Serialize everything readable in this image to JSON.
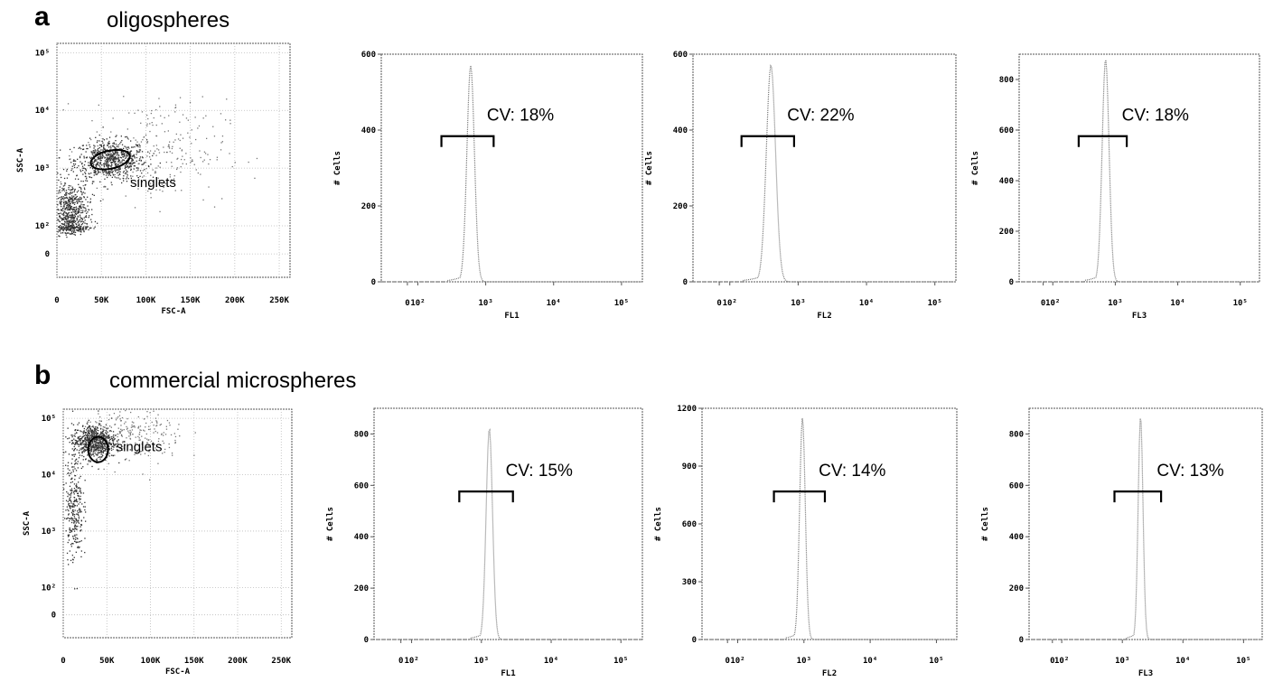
{
  "rows": [
    {
      "letter": "a",
      "title": "oligospheres",
      "scatter": {
        "xlabel": "FSC-A",
        "ylabel": "SSC-A",
        "xticks": [
          "0",
          "50K",
          "100K",
          "150K",
          "200K",
          "250K"
        ],
        "yticks": [
          "0",
          "10²",
          "10³",
          "10⁴",
          "10⁵"
        ],
        "gate_label": "singlets"
      },
      "histograms": [
        {
          "xlabel": "FL1",
          "ylabel": "# Cells",
          "yticks": [
            "0",
            "200",
            "400",
            "600"
          ],
          "xticks": [
            "0",
            "10²",
            "10³",
            "10⁴",
            "10⁵"
          ],
          "cv": "CV: 18%"
        },
        {
          "xlabel": "FL2",
          "ylabel": "# Cells",
          "yticks": [
            "0",
            "200",
            "400",
            "600"
          ],
          "xticks": [
            "0",
            "10²",
            "10³",
            "10⁴",
            "10⁵"
          ],
          "cv": "CV: 22%"
        },
        {
          "xlabel": "FL3",
          "ylabel": "# Cells",
          "yticks": [
            "0",
            "200",
            "400",
            "600",
            "800"
          ],
          "xticks": [
            "0",
            "10²",
            "10³",
            "10⁴",
            "10⁵"
          ],
          "cv": "CV: 18%"
        }
      ]
    },
    {
      "letter": "b",
      "title": "commercial microspheres",
      "scatter": {
        "xlabel": "FSC-A",
        "ylabel": "SSC-A",
        "xticks": [
          "0",
          "50K",
          "100K",
          "150K",
          "200K",
          "250K"
        ],
        "yticks": [
          "0",
          "10²",
          "10³",
          "10⁴",
          "10⁵"
        ],
        "gate_label": "singlets"
      },
      "histograms": [
        {
          "xlabel": "FL1",
          "ylabel": "# Cells",
          "yticks": [
            "0",
            "200",
            "400",
            "600",
            "800"
          ],
          "xticks": [
            "0",
            "10²",
            "10³",
            "10⁴",
            "10⁵"
          ],
          "cv": "CV: 15%"
        },
        {
          "xlabel": "FL2",
          "ylabel": "# Cells",
          "yticks": [
            "0",
            "300",
            "600",
            "900",
            "1200"
          ],
          "xticks": [
            "0",
            "10²",
            "10³",
            "10⁴",
            "10⁵"
          ],
          "cv": "CV: 14%"
        },
        {
          "xlabel": "FL3",
          "ylabel": "# Cells",
          "yticks": [
            "0",
            "200",
            "400",
            "600",
            "800"
          ],
          "xticks": [
            "0",
            "10²",
            "10³",
            "10⁴",
            "10⁵"
          ],
          "cv": "CV: 13%"
        }
      ]
    }
  ],
  "chart_data": [
    {
      "type": "scatter",
      "panel": "a",
      "title": "oligospheres",
      "xlabel": "FSC-A",
      "ylabel": "SSC-A",
      "xlim": [
        0,
        262144
      ],
      "yscale": "biexponential",
      "x_tick_values": [
        0,
        50000,
        100000,
        150000,
        200000,
        250000
      ],
      "y_tick_values": [
        0,
        100,
        1000,
        10000,
        100000
      ],
      "gate": {
        "name": "singlets",
        "center": [
          60000,
          1400
        ]
      },
      "populations": [
        {
          "center": [
            60000,
            1400
          ],
          "x_spread": 40000,
          "y_log_spread": 0.35,
          "density": "high"
        },
        {
          "center": [
            15000,
            150
          ],
          "x_spread": 20000,
          "y_log_spread": 0.6,
          "density": "high"
        },
        {
          "center": [
            110000,
            2000
          ],
          "x_spread": 80000,
          "y_log_spread": 0.9,
          "density": "low"
        }
      ]
    },
    {
      "type": "line",
      "panel": "a",
      "title": "",
      "xlabel": "FL1",
      "ylabel": "# Cells",
      "xscale": "biexponential",
      "ylim": [
        0,
        600
      ],
      "x_tick_values": [
        0,
        100,
        1000,
        10000,
        100000
      ],
      "y_tick_values": [
        0,
        200,
        400,
        600
      ],
      "peak": {
        "x": 600,
        "y": 570
      },
      "cv": 18
    },
    {
      "type": "line",
      "panel": "a",
      "title": "",
      "xlabel": "FL2",
      "ylabel": "# Cells",
      "xscale": "biexponential",
      "ylim": [
        0,
        600
      ],
      "x_tick_values": [
        0,
        100,
        1000,
        10000,
        100000
      ],
      "y_tick_values": [
        0,
        200,
        400,
        600
      ],
      "peak": {
        "x": 400,
        "y": 570
      },
      "cv": 22
    },
    {
      "type": "line",
      "panel": "a",
      "title": "",
      "xlabel": "FL3",
      "ylabel": "# Cells",
      "xscale": "biexponential",
      "ylim": [
        0,
        900
      ],
      "x_tick_values": [
        0,
        100,
        1000,
        10000,
        100000
      ],
      "y_tick_values": [
        0,
        200,
        400,
        600,
        800
      ],
      "peak": {
        "x": 700,
        "y": 880
      },
      "cv": 18
    },
    {
      "type": "scatter",
      "panel": "b",
      "title": "commercial microspheres",
      "xlabel": "FSC-A",
      "ylabel": "SSC-A",
      "xlim": [
        0,
        262144
      ],
      "yscale": "biexponential",
      "x_tick_values": [
        0,
        50000,
        100000,
        150000,
        200000,
        250000
      ],
      "y_tick_values": [
        0,
        100,
        1000,
        10000,
        100000
      ],
      "gate": {
        "name": "singlets",
        "center": [
          40000,
          28000
        ]
      },
      "populations": [
        {
          "center": [
            35000,
            40000
          ],
          "x_spread": 25000,
          "y_log_spread": 0.3,
          "density": "high"
        },
        {
          "center": [
            12000,
            3000
          ],
          "x_spread": 10000,
          "y_log_spread": 1.0,
          "density": "medium"
        },
        {
          "center": [
            80000,
            50000
          ],
          "x_spread": 60000,
          "y_log_spread": 0.5,
          "density": "low"
        }
      ]
    },
    {
      "type": "line",
      "panel": "b",
      "title": "",
      "xlabel": "FL1",
      "ylabel": "# Cells",
      "xscale": "biexponential",
      "ylim": [
        0,
        900
      ],
      "x_tick_values": [
        0,
        100,
        1000,
        10000,
        100000
      ],
      "y_tick_values": [
        0,
        200,
        400,
        600,
        800
      ],
      "peak": {
        "x": 1300,
        "y": 820
      },
      "cv": 15
    },
    {
      "type": "line",
      "panel": "b",
      "title": "",
      "xlabel": "FL2",
      "ylabel": "# Cells",
      "xscale": "biexponential",
      "ylim": [
        0,
        1200
      ],
      "x_tick_values": [
        0,
        100,
        1000,
        10000,
        100000
      ],
      "y_tick_values": [
        0,
        300,
        600,
        900,
        1200
      ],
      "peak": {
        "x": 950,
        "y": 1150
      },
      "cv": 14
    },
    {
      "type": "line",
      "panel": "b",
      "title": "",
      "xlabel": "FL3",
      "ylabel": "# Cells",
      "xscale": "biexponential",
      "ylim": [
        0,
        900
      ],
      "x_tick_values": [
        0,
        100,
        1000,
        10000,
        100000
      ],
      "y_tick_values": [
        0,
        200,
        400,
        600,
        800
      ],
      "peak": {
        "x": 2000,
        "y": 870
      },
      "cv": 13
    }
  ]
}
